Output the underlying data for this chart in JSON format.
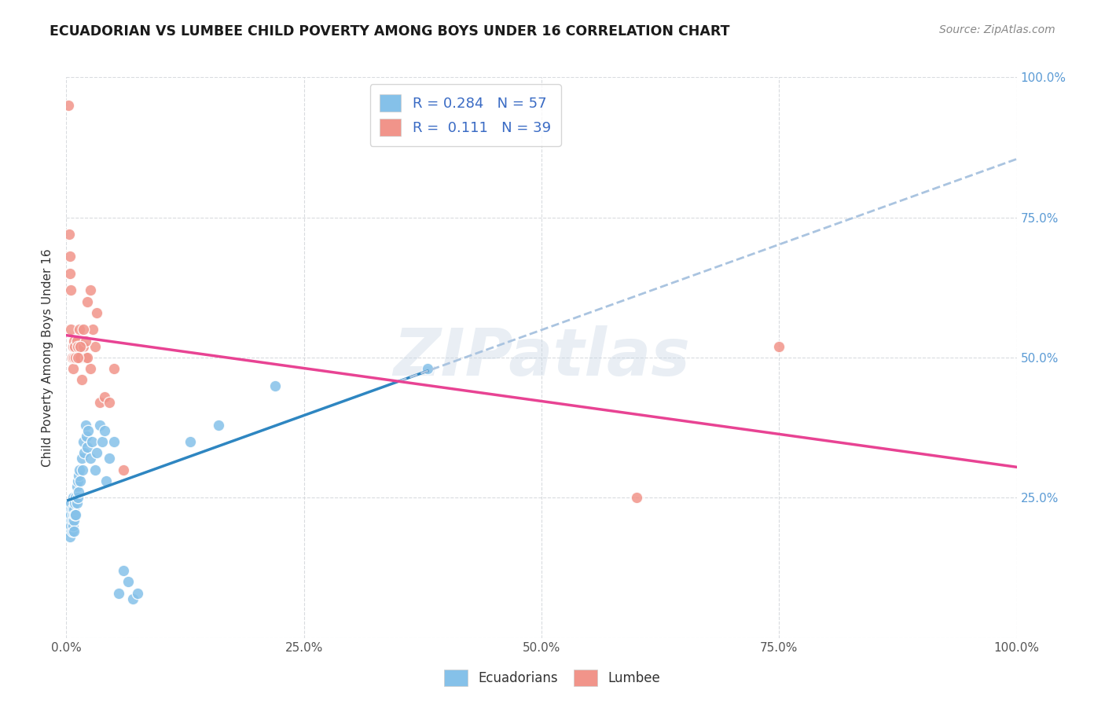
{
  "title": "ECUADORIAN VS LUMBEE CHILD POVERTY AMONG BOYS UNDER 16 CORRELATION CHART",
  "source": "Source: ZipAtlas.com",
  "ylabel": "Child Poverty Among Boys Under 16",
  "xlim": [
    0,
    1.0
  ],
  "ylim": [
    0,
    1.0
  ],
  "xticks": [
    0.0,
    0.25,
    0.5,
    0.75,
    1.0
  ],
  "xticklabels": [
    "0.0%",
    "25.0%",
    "50.0%",
    "75.0%",
    "100.0%"
  ],
  "right_yticks": [
    0.25,
    0.5,
    0.75,
    1.0
  ],
  "right_yticklabels": [
    "25.0%",
    "50.0%",
    "75.0%",
    "100.0%"
  ],
  "ecuadorian_color": "#85c1e9",
  "lumbee_color": "#f1948a",
  "trend_blue_color": "#2e86c1",
  "trend_pink_color": "#e84393",
  "trend_dashed_color": "#aac4e0",
  "legend_R_blue": "0.284",
  "legend_N_blue": "57",
  "legend_R_pink": "0.111",
  "legend_N_pink": "39",
  "watermark": "ZIPatlas",
  "ecuadorians_x": [
    0.002,
    0.003,
    0.003,
    0.004,
    0.004,
    0.004,
    0.005,
    0.005,
    0.005,
    0.006,
    0.006,
    0.006,
    0.007,
    0.007,
    0.007,
    0.008,
    0.008,
    0.008,
    0.009,
    0.009,
    0.01,
    0.01,
    0.011,
    0.011,
    0.012,
    0.012,
    0.013,
    0.013,
    0.014,
    0.015,
    0.016,
    0.017,
    0.018,
    0.019,
    0.02,
    0.021,
    0.022,
    0.023,
    0.025,
    0.027,
    0.03,
    0.032,
    0.035,
    0.038,
    0.04,
    0.042,
    0.045,
    0.05,
    0.055,
    0.06,
    0.065,
    0.07,
    0.075,
    0.13,
    0.16,
    0.22,
    0.38
  ],
  "ecuadorians_y": [
    0.2,
    0.22,
    0.19,
    0.21,
    0.18,
    0.23,
    0.2,
    0.22,
    0.24,
    0.19,
    0.21,
    0.23,
    0.2,
    0.22,
    0.25,
    0.21,
    0.23,
    0.19,
    0.22,
    0.24,
    0.25,
    0.22,
    0.27,
    0.24,
    0.28,
    0.25,
    0.26,
    0.29,
    0.3,
    0.28,
    0.32,
    0.3,
    0.35,
    0.33,
    0.38,
    0.36,
    0.34,
    0.37,
    0.32,
    0.35,
    0.3,
    0.33,
    0.38,
    0.35,
    0.37,
    0.28,
    0.32,
    0.35,
    0.08,
    0.12,
    0.1,
    0.07,
    0.08,
    0.35,
    0.38,
    0.45,
    0.48
  ],
  "lumbee_x": [
    0.002,
    0.003,
    0.004,
    0.004,
    0.005,
    0.005,
    0.006,
    0.007,
    0.007,
    0.008,
    0.008,
    0.009,
    0.01,
    0.011,
    0.012,
    0.013,
    0.014,
    0.015,
    0.016,
    0.018,
    0.02,
    0.022,
    0.025,
    0.028,
    0.032,
    0.035,
    0.04,
    0.045,
    0.05,
    0.06,
    0.03,
    0.025,
    0.02,
    0.022,
    0.018,
    0.015,
    0.012,
    0.6,
    0.75
  ],
  "lumbee_y": [
    0.95,
    0.72,
    0.68,
    0.65,
    0.62,
    0.55,
    0.5,
    0.52,
    0.48,
    0.53,
    0.5,
    0.52,
    0.5,
    0.53,
    0.52,
    0.5,
    0.55,
    0.5,
    0.46,
    0.52,
    0.5,
    0.6,
    0.62,
    0.55,
    0.58,
    0.42,
    0.43,
    0.42,
    0.48,
    0.3,
    0.52,
    0.48,
    0.53,
    0.5,
    0.55,
    0.52,
    0.5,
    0.25,
    0.52
  ],
  "background_color": "#ffffff",
  "grid_color": "#d5d8dc"
}
